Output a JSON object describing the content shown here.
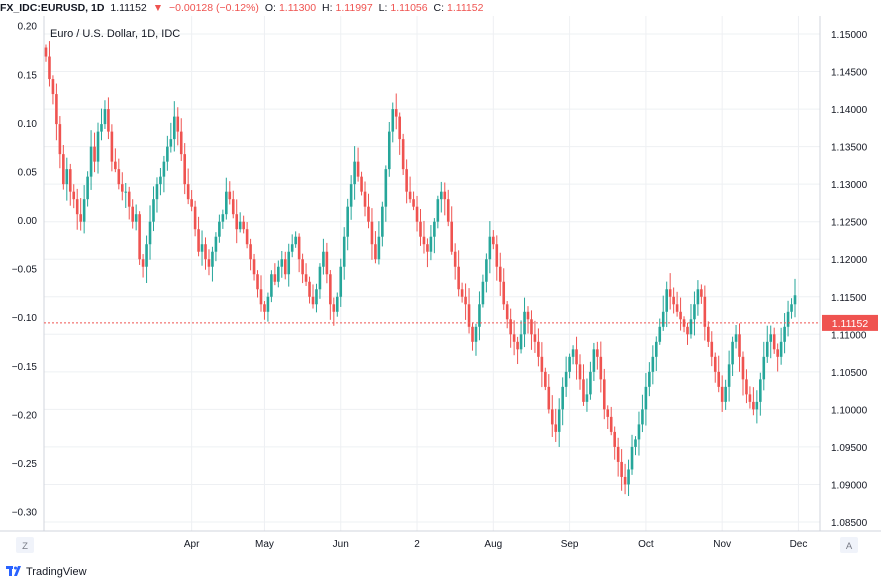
{
  "header": {
    "symbol": "FX_IDC:EURUSD, 1D",
    "last": "1.11152",
    "arrow": "▼",
    "change": "−0.00128 (−0.12%)",
    "o_label": "O:",
    "o_value": "1.11300",
    "h_label": "H:",
    "h_value": "1.11997",
    "l_label": "L:",
    "l_value": "1.11056",
    "c_label": "C:",
    "c_value": "1.11152"
  },
  "chart_data": {
    "type": "candlestick",
    "title": "Euro / U.S. Dollar, 1D, IDC",
    "left_axis": {
      "ticks": [
        "0.20",
        "0.15",
        "0.10",
        "0.05",
        "0.00",
        "−0.05",
        "−0.10",
        "−0.15",
        "−0.20",
        "−0.25",
        "−0.30"
      ],
      "range": [
        -0.32,
        0.21
      ]
    },
    "right_axis": {
      "ticks": [
        "1.15000",
        "1.14500",
        "1.14000",
        "1.13500",
        "1.13000",
        "1.12500",
        "1.12000",
        "1.11500",
        "1.11000",
        "1.10500",
        "1.10000",
        "1.09500",
        "1.09000",
        "1.08500"
      ],
      "range": [
        1.0838,
        1.1524
      ]
    },
    "x_ticks": [
      "Apr",
      "May",
      "Jun",
      "2",
      "Aug",
      "Sep",
      "Oct",
      "Nov",
      "Dec"
    ],
    "last_price_label": "1.11152",
    "last_price": 1.11152,
    "colors": {
      "up": "#26a69a",
      "down": "#ef5350",
      "price_line": "#ef5350",
      "grid": "#eef0f3"
    },
    "closes": [
      1.147,
      1.144,
      1.142,
      1.138,
      1.134,
      1.13,
      1.132,
      1.129,
      1.128,
      1.126,
      1.125,
      1.128,
      1.131,
      1.135,
      1.133,
      1.137,
      1.138,
      1.14,
      1.137,
      1.133,
      1.132,
      1.13,
      1.129,
      1.129,
      1.127,
      1.125,
      1.126,
      1.12,
      1.119,
      1.122,
      1.125,
      1.128,
      1.13,
      1.131,
      1.133,
      1.135,
      1.136,
      1.139,
      1.137,
      1.134,
      1.13,
      1.128,
      1.127,
      1.124,
      1.121,
      1.122,
      1.12,
      1.119,
      1.121,
      1.123,
      1.125,
      1.126,
      1.129,
      1.128,
      1.126,
      1.124,
      1.125,
      1.124,
      1.122,
      1.12,
      1.118,
      1.116,
      1.114,
      1.113,
      1.115,
      1.118,
      1.117,
      1.119,
      1.12,
      1.118,
      1.121,
      1.122,
      1.123,
      1.12,
      1.118,
      1.117,
      1.115,
      1.114,
      1.116,
      1.119,
      1.121,
      1.118,
      1.114,
      1.113,
      1.115,
      1.119,
      1.123,
      1.127,
      1.13,
      1.133,
      1.131,
      1.129,
      1.127,
      1.125,
      1.122,
      1.12,
      1.123,
      1.127,
      1.132,
      1.137,
      1.14,
      1.139,
      1.136,
      1.132,
      1.129,
      1.128,
      1.127,
      1.125,
      1.123,
      1.122,
      1.121,
      1.123,
      1.125,
      1.128,
      1.129,
      1.128,
      1.125,
      1.121,
      1.119,
      1.116,
      1.115,
      1.114,
      1.111,
      1.109,
      1.111,
      1.114,
      1.117,
      1.12,
      1.123,
      1.122,
      1.119,
      1.117,
      1.114,
      1.112,
      1.11,
      1.109,
      1.108,
      1.11,
      1.113,
      1.112,
      1.11,
      1.109,
      1.107,
      1.105,
      1.103,
      1.1,
      1.098,
      1.097,
      1.1,
      1.103,
      1.105,
      1.107,
      1.108,
      1.106,
      1.104,
      1.101,
      1.102,
      1.105,
      1.108,
      1.107,
      1.104,
      1.1,
      1.099,
      1.097,
      1.095,
      1.093,
      1.091,
      1.09,
      1.092,
      1.095,
      1.096,
      1.098,
      1.1,
      1.103,
      1.105,
      1.107,
      1.109,
      1.111,
      1.113,
      1.116,
      1.115,
      1.114,
      1.113,
      1.112,
      1.111,
      1.11,
      1.112,
      1.114,
      1.116,
      1.115,
      1.111,
      1.109,
      1.107,
      1.105,
      1.103,
      1.101,
      1.103,
      1.106,
      1.109,
      1.11,
      1.107,
      1.104,
      1.102,
      1.101,
      1.1,
      1.101,
      1.104,
      1.107,
      1.109,
      1.11,
      1.108,
      1.107,
      1.109,
      1.111,
      1.113,
      1.114,
      1.1152
    ]
  },
  "buttons": {
    "left_auto": "Z",
    "right_auto": "A"
  },
  "footer": {
    "brand": "TradingView"
  }
}
